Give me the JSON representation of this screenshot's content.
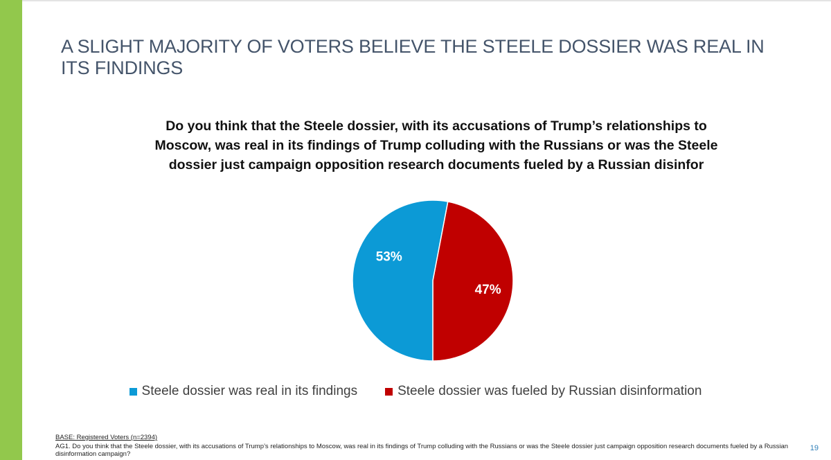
{
  "slide": {
    "title": "A SLIGHT MAJORITY OF VOTERS BELIEVE THE STEELE DOSSIER WAS REAL IN ITS FINDINGS",
    "page_number": "19",
    "accent_color": "#92c84c"
  },
  "chart_data": {
    "type": "pie",
    "title": "Do you think that the Steele dossier, with its accusations of Trump’s relationships to Moscow, was real in its findings of Trump colluding with the Russians or was the Steele dossier just campaign opposition research documents fueled by a Russian disinfor",
    "slices": [
      {
        "label": "Steele dossier was real in its findings",
        "value": 53,
        "display": "53%",
        "color": "#0c9ad6"
      },
      {
        "label": "Steele dossier was fueled by Russian disinformation",
        "value": 47,
        "display": "47%",
        "color": "#c00000"
      }
    ],
    "legend_position": "bottom"
  },
  "footnote": {
    "base": "BASE: Registered Voters (n=2394)",
    "text": "AG1. Do you think that the Steele dossier, with its accusations of Trump’s relationships to Moscow, was real in its findings of Trump colluding with the Russians or was the Steele dossier just campaign opposition research documents fueled by a Russian disinformation campaign?"
  }
}
